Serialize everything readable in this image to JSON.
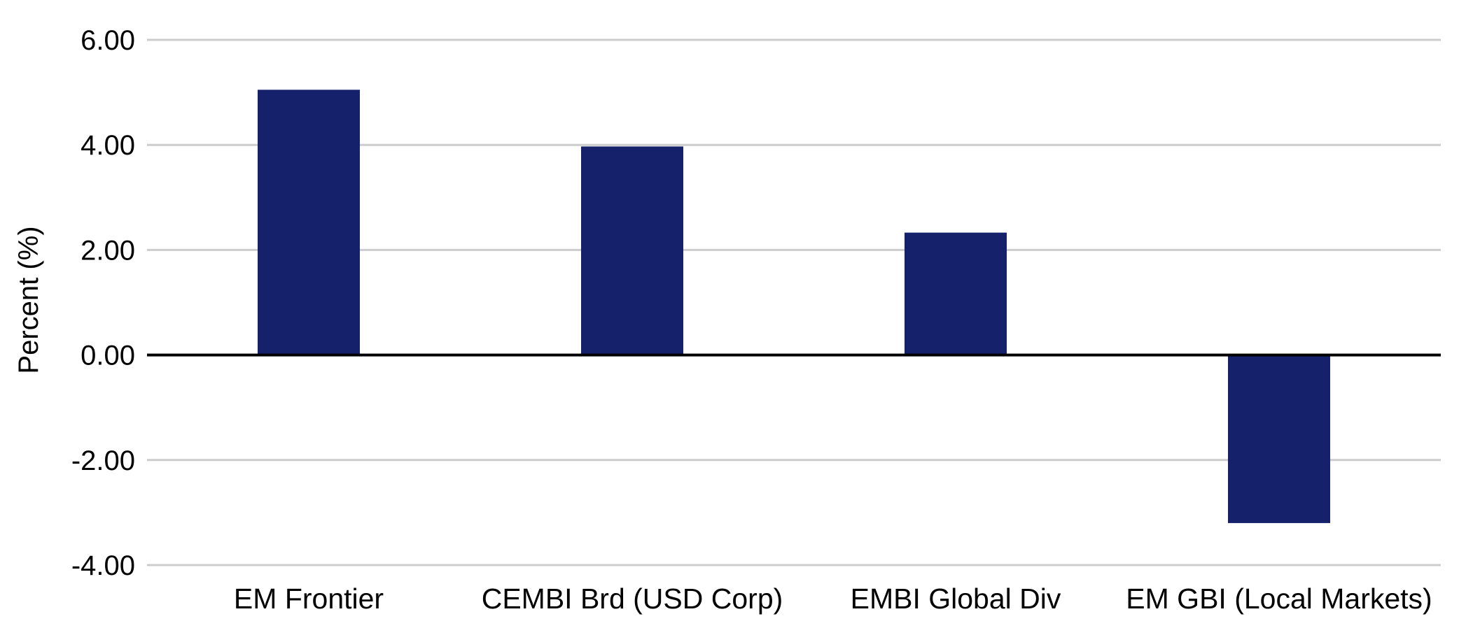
{
  "chart_data": {
    "type": "bar",
    "title": "",
    "xlabel": "",
    "ylabel": "Percent (%)",
    "categories": [
      "EM Frontier",
      "CEMBI Brd (USD Corp)",
      "EMBI Global Div",
      "EM GBI (Local Markets)"
    ],
    "values": [
      5.05,
      3.97,
      2.33,
      -3.2
    ],
    "ylim": [
      -4,
      6
    ],
    "yticks": [
      6,
      4,
      2,
      0,
      -2,
      -4
    ],
    "ytick_labels": [
      "6.00",
      "4.00",
      "2.00",
      "0.00",
      "-2.00",
      "-4.00"
    ],
    "grid": true,
    "legend": "none",
    "colors": {
      "bar": "#15216A",
      "grid": "#CCCCCC",
      "zero_line": "#000000"
    }
  }
}
